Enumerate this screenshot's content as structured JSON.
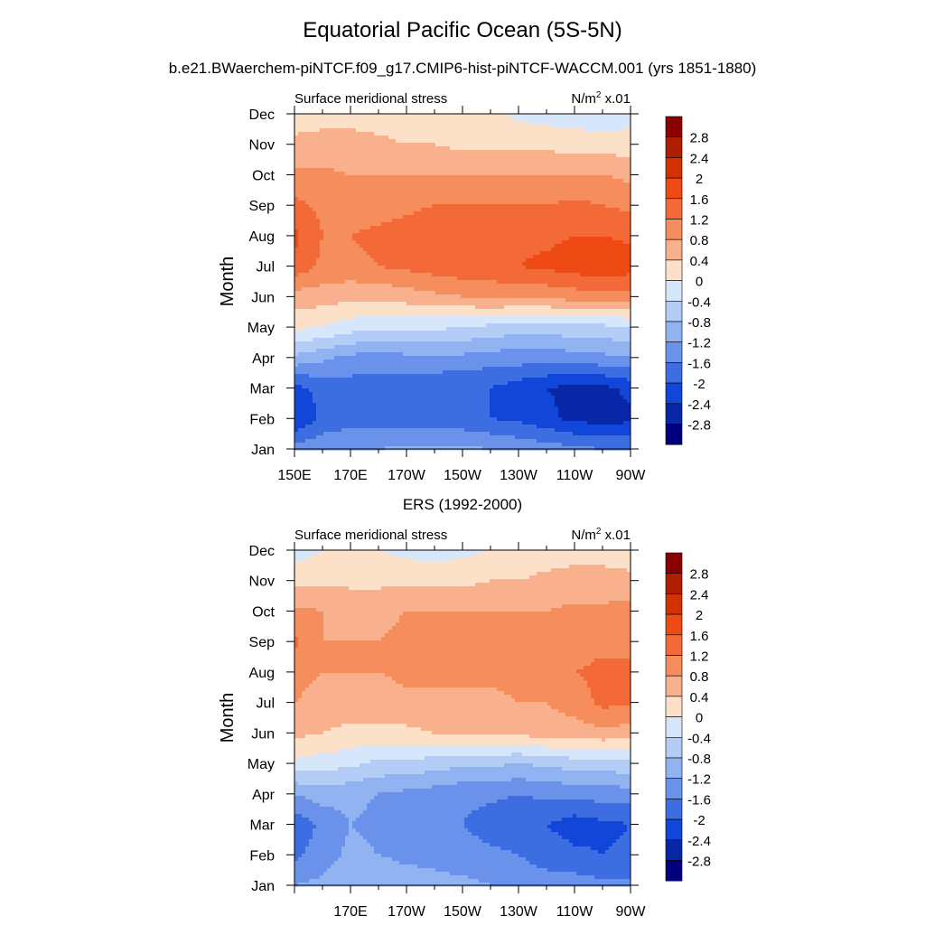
{
  "figure": {
    "title": "Equatorial Pacific Ocean (5S-5N)",
    "subtitle": "b.e21.BWaerchem-piNTCF.f09_g17.CMIP6-hist-piNTCF-WACCM.001 (yrs 1851-1880)"
  },
  "colorbar": {
    "labels": [
      "2.8",
      "2.4",
      "2",
      "1.6",
      "1.2",
      "0.8",
      "0.4",
      "0",
      "-0.4",
      "-0.8",
      "-1.2",
      "-1.6",
      "-2",
      "-2.4",
      "-2.8"
    ],
    "colors": [
      "#8b0000",
      "#b01e00",
      "#d23200",
      "#ee4a14",
      "#f36a38",
      "#f68d5c",
      "#f9b08c",
      "#fde0c8",
      "#d6e7fb",
      "#b3cdf6",
      "#91b3f1",
      "#6b92ea",
      "#3c6ee2",
      "#1146d9",
      "#0727a6",
      "#00007e"
    ]
  },
  "chart_data": [
    {
      "type": "heatmap",
      "panel_title": "",
      "left_label": "Surface meridional stress",
      "right_label": "N/m2 x.01",
      "ylabel": "Month",
      "x_ticks": [
        "150E",
        "170E",
        "170W",
        "150W",
        "130W",
        "110W",
        "90W"
      ],
      "x_range": [
        "150E",
        "90W"
      ],
      "y_ticks": [
        "Jan",
        "Feb",
        "Mar",
        "Apr",
        "May",
        "Jun",
        "Jul",
        "Aug",
        "Sep",
        "Oct",
        "Nov",
        "Dec"
      ],
      "levels": [
        -2.8,
        -2.4,
        -2,
        -1.6,
        -1.2,
        -0.8,
        -0.4,
        0,
        0.4,
        0.8,
        1.2,
        1.6,
        2,
        2.4,
        2.8
      ],
      "lons": [
        "150E",
        "160E",
        "170E",
        "180",
        "170W",
        "160W",
        "150W",
        "140W",
        "130W",
        "120W",
        "110W",
        "100W",
        "90W"
      ],
      "values": [
        [
          -1.4,
          -1.3,
          -1.2,
          -1.2,
          -1.1,
          -1.1,
          -1.1,
          -1.2,
          -1.3,
          -1.4,
          -1.5,
          -1.6,
          -1.6
        ],
        [
          -2.4,
          -1.9,
          -1.8,
          -1.8,
          -1.8,
          -1.8,
          -1.9,
          -2.0,
          -2.1,
          -2.3,
          -2.5,
          -2.6,
          -2.5
        ],
        [
          -2.1,
          -1.9,
          -1.8,
          -1.8,
          -1.8,
          -1.9,
          -2.0,
          -2.0,
          -2.2,
          -2.4,
          -2.5,
          -2.5,
          -2.3
        ],
        [
          -0.9,
          -1.1,
          -1.3,
          -1.4,
          -1.3,
          -1.3,
          -1.3,
          -1.4,
          -1.4,
          -1.4,
          -1.4,
          -1.3,
          -1.2
        ],
        [
          0.1,
          0.0,
          -0.2,
          -0.3,
          -0.3,
          -0.3,
          -0.4,
          -0.5,
          -0.6,
          -0.6,
          -0.5,
          -0.5,
          -0.4
        ],
        [
          0.6,
          0.6,
          0.5,
          0.5,
          0.6,
          0.7,
          0.8,
          0.9,
          0.9,
          0.9,
          1.0,
          1.0,
          1.0
        ],
        [
          1.5,
          1.1,
          1.1,
          1.2,
          1.3,
          1.4,
          1.5,
          1.5,
          1.6,
          1.7,
          1.8,
          2.0,
          1.8
        ],
        [
          1.7,
          1.2,
          1.2,
          1.3,
          1.4,
          1.5,
          1.5,
          1.5,
          1.5,
          1.5,
          1.6,
          1.6,
          1.5
        ],
        [
          1.3,
          1.1,
          1.0,
          1.0,
          1.1,
          1.2,
          1.2,
          1.2,
          1.2,
          1.2,
          1.3,
          1.2,
          1.1
        ],
        [
          0.9,
          0.9,
          0.8,
          0.8,
          0.8,
          0.8,
          0.8,
          0.8,
          0.8,
          0.8,
          0.8,
          0.8,
          0.7
        ],
        [
          0.5,
          0.5,
          0.5,
          0.5,
          0.4,
          0.4,
          0.3,
          0.3,
          0.3,
          0.3,
          0.2,
          0.2,
          0.2
        ],
        [
          0.2,
          0.3,
          0.3,
          0.2,
          0.1,
          0.1,
          0.1,
          0.1,
          -0.1,
          -0.2,
          -0.2,
          -0.3,
          -0.2
        ]
      ]
    },
    {
      "type": "heatmap",
      "panel_title": "ERS (1992-2000)",
      "left_label": "Surface meridional stress",
      "right_label": "N/m2 x.01",
      "ylabel": "Month",
      "x_ticks": [
        "170E",
        "170W",
        "150W",
        "130W",
        "110W",
        "90W"
      ],
      "x_range": [
        "150E",
        "90W"
      ],
      "y_ticks": [
        "Jan",
        "Feb",
        "Mar",
        "Apr",
        "May",
        "Jun",
        "Jul",
        "Aug",
        "Sep",
        "Oct",
        "Nov",
        "Dec"
      ],
      "levels": [
        -2.8,
        -2.4,
        -2,
        -1.6,
        -1.2,
        -0.8,
        -0.4,
        0,
        0.4,
        0.8,
        1.2,
        1.6,
        2,
        2.4,
        2.8
      ],
      "lons": [
        "150E",
        "160E",
        "170E",
        "180",
        "170W",
        "160W",
        "150W",
        "140W",
        "130W",
        "120W",
        "110W",
        "100W",
        "90W"
      ],
      "values": [
        [
          -1.2,
          -1.1,
          -0.9,
          -0.9,
          -1.0,
          -1.1,
          -1.1,
          -1.2,
          -1.3,
          -1.4,
          -1.4,
          -1.5,
          -1.5
        ],
        [
          -1.7,
          -1.4,
          -1.1,
          -1.2,
          -1.3,
          -1.3,
          -1.4,
          -1.5,
          -1.6,
          -1.8,
          -1.9,
          -2.0,
          -1.9
        ],
        [
          -1.9,
          -1.5,
          -1.2,
          -1.3,
          -1.4,
          -1.4,
          -1.6,
          -1.8,
          -1.9,
          -2.0,
          -2.2,
          -2.1,
          -2.0
        ],
        [
          -1.2,
          -1.0,
          -1.1,
          -1.2,
          -1.3,
          -1.4,
          -1.5,
          -1.5,
          -1.6,
          -1.5,
          -1.5,
          -1.4,
          -1.4
        ],
        [
          -0.1,
          -0.2,
          -0.3,
          -0.5,
          -0.5,
          -0.6,
          -0.7,
          -0.7,
          -0.8,
          -0.7,
          -0.6,
          -0.6,
          -0.5
        ],
        [
          0.5,
          0.4,
          0.3,
          0.3,
          0.3,
          0.4,
          0.4,
          0.4,
          0.5,
          0.6,
          0.6,
          0.7,
          0.6
        ],
        [
          0.8,
          0.6,
          0.6,
          0.6,
          0.7,
          0.7,
          0.7,
          0.7,
          0.8,
          0.8,
          1.0,
          1.3,
          1.3
        ],
        [
          1.0,
          0.8,
          0.8,
          0.8,
          0.9,
          0.9,
          0.9,
          0.9,
          0.9,
          1.0,
          1.2,
          1.3,
          1.3
        ],
        [
          1.3,
          0.8,
          0.8,
          0.8,
          0.9,
          0.9,
          0.9,
          0.9,
          0.9,
          0.9,
          1.0,
          1.1,
          1.1
        ],
        [
          0.9,
          0.8,
          0.7,
          0.7,
          0.8,
          0.8,
          0.8,
          0.8,
          0.8,
          0.8,
          0.9,
          0.9,
          1.0
        ],
        [
          0.3,
          0.3,
          0.3,
          0.3,
          0.3,
          0.3,
          0.3,
          0.4,
          0.4,
          0.5,
          0.5,
          0.5,
          0.5
        ],
        [
          -0.2,
          0.0,
          0.1,
          0.0,
          -0.1,
          -0.2,
          -0.1,
          0.0,
          0.1,
          0.2,
          0.3,
          0.3,
          0.2
        ]
      ]
    }
  ]
}
